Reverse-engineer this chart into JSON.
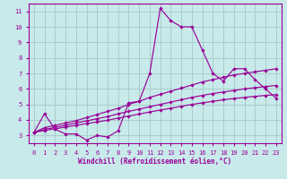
{
  "background_color": "#c8eaea",
  "grid_color": "#aacccc",
  "line_color": "#990099",
  "xlabel": "Windchill (Refroidissement éolien,°C)",
  "xlim": [
    -0.5,
    23.5
  ],
  "ylim": [
    2.5,
    11.5
  ],
  "yticks": [
    3,
    4,
    5,
    6,
    7,
    8,
    9,
    10,
    11
  ],
  "xticks": [
    0,
    1,
    2,
    3,
    4,
    5,
    6,
    7,
    8,
    9,
    10,
    11,
    12,
    13,
    14,
    15,
    16,
    17,
    18,
    19,
    20,
    21,
    22,
    23
  ],
  "line1_x": [
    0,
    1,
    2,
    3,
    4,
    5,
    6,
    7,
    8,
    9,
    10,
    11,
    12,
    13,
    14,
    15,
    16,
    17,
    18,
    19,
    20,
    21,
    22,
    23
  ],
  "line1_y": [
    3.2,
    4.4,
    3.4,
    3.1,
    3.1,
    2.7,
    3.0,
    2.9,
    3.3,
    5.1,
    5.2,
    7.0,
    11.2,
    10.4,
    10.0,
    10.0,
    8.5,
    7.0,
    6.5,
    7.3,
    7.3,
    6.6,
    6.0,
    5.4
  ],
  "line2_x": [
    0,
    1,
    2,
    3,
    4,
    5,
    6,
    7,
    8,
    9,
    10,
    11,
    12,
    13,
    14,
    15,
    16,
    17,
    18,
    19,
    20,
    21,
    22,
    23
  ],
  "line2_y": [
    3.2,
    3.5,
    3.65,
    3.8,
    3.95,
    4.15,
    4.35,
    4.55,
    4.75,
    5.0,
    5.2,
    5.45,
    5.65,
    5.85,
    6.05,
    6.25,
    6.45,
    6.6,
    6.75,
    6.9,
    7.0,
    7.1,
    7.2,
    7.3
  ],
  "line3_x": [
    0,
    1,
    2,
    3,
    4,
    5,
    6,
    7,
    8,
    9,
    10,
    11,
    12,
    13,
    14,
    15,
    16,
    17,
    18,
    19,
    20,
    21,
    22,
    23
  ],
  "line3_y": [
    3.2,
    3.38,
    3.52,
    3.66,
    3.8,
    3.94,
    4.08,
    4.22,
    4.4,
    4.55,
    4.7,
    4.85,
    5.0,
    5.15,
    5.3,
    5.45,
    5.58,
    5.7,
    5.8,
    5.9,
    6.0,
    6.08,
    6.15,
    6.22
  ],
  "line4_x": [
    0,
    1,
    2,
    3,
    4,
    5,
    6,
    7,
    8,
    9,
    10,
    11,
    12,
    13,
    14,
    15,
    16,
    17,
    18,
    19,
    20,
    21,
    22,
    23
  ],
  "line4_y": [
    3.2,
    3.32,
    3.43,
    3.54,
    3.65,
    3.76,
    3.87,
    3.98,
    4.12,
    4.25,
    4.38,
    4.51,
    4.64,
    4.75,
    4.88,
    5.0,
    5.1,
    5.2,
    5.3,
    5.38,
    5.45,
    5.52,
    5.58,
    5.63
  ]
}
